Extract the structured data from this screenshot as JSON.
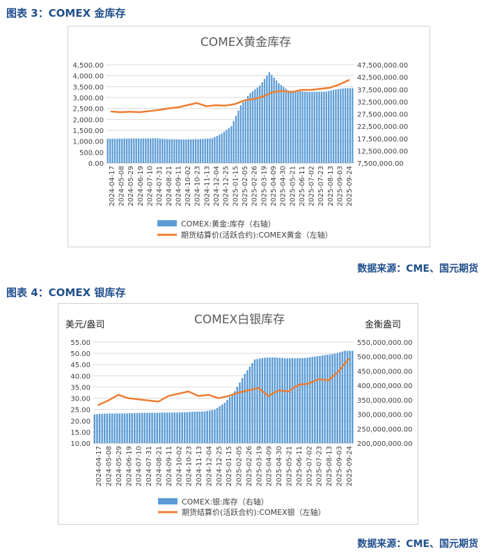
{
  "figure1": {
    "heading": "图表 3：COMEX 金库存",
    "source": "数据来源：CME、国元期货"
  },
  "figure2": {
    "heading": "图表 4：COMEX 银库存",
    "source": "数据来源：CME、国元期货"
  },
  "chart_data": [
    {
      "type": "bar",
      "title": "COMEX黄金库存",
      "left_axis_title": "",
      "right_axis_title": "",
      "x": [
        "2024-04-17",
        "2024-05-08",
        "2024-05-29",
        "2024-06-19",
        "2024-07-10",
        "2024-07-31",
        "2024-08-21",
        "2024-09-11",
        "2024-10-02",
        "2024-10-23",
        "2024-11-13",
        "2024-12-04",
        "2024-12-25",
        "2025-01-15",
        "2025-02-05",
        "2025-02-26",
        "2025-03-19",
        "2025-04-09",
        "2025-04-30",
        "2025-05-21",
        "2025-06-11",
        "2025-07-02",
        "2025-07-23",
        "2025-08-13",
        "2025-09-03",
        "2025-09-24"
      ],
      "x_ticks": [
        "2024-04-17",
        "2024-05-08",
        "2024-05-29",
        "2024-06-19",
        "2024-07-10",
        "2024-07-31",
        "2024-08-21",
        "2024-09-11",
        "2024-10-02",
        "2024-10-23",
        "2024-11-13",
        "2024-12-04",
        "2024-12-25",
        "2025-01-15",
        "2025-02-05",
        "2025-02-26",
        "2025-03-19",
        "2025-04-09",
        "2025-04-30",
        "2025-05-21",
        "2025-06-11",
        "2025-07-02",
        "2025-07-23",
        "2025-08-13",
        "2025-09-03",
        "2025-09-24"
      ],
      "left_ylim": [
        0,
        4500
      ],
      "left_ticks": [
        "4,500.00",
        "4,000.00",
        "3,500.00",
        "3,000.00",
        "2,500.00",
        "2,000.00",
        "1,500.00",
        "1,000.00",
        "500.00",
        "0.00"
      ],
      "right_ylim": [
        7500000,
        47500000
      ],
      "right_ticks": [
        "47,500,000.00",
        "42,500,000.00",
        "37,500,000.00",
        "32,500,000.00",
        "27,500,000.00",
        "22,500,000.00",
        "17,500,000.00",
        "12,500,000.00",
        "7,500,000.00"
      ],
      "series": [
        {
          "name": "COMEX:黄金:库存（右轴）",
          "kind": "bar",
          "axis": "right",
          "color": "#5b9bd5",
          "values": [
            17400000,
            17400000,
            17500000,
            17500000,
            17500000,
            17600000,
            17300000,
            17200000,
            17100000,
            17200000,
            17300000,
            17600000,
            19500000,
            22500000,
            31000000,
            36000000,
            39000000,
            44500000,
            40000000,
            37000000,
            36800000,
            36500000,
            36500000,
            36600000,
            37500000,
            38000000
          ]
        },
        {
          "name": "期货结算价(活跃合约):COMEX黄金（左轴）",
          "kind": "line",
          "axis": "left",
          "color": "#ed7d31",
          "values": [
            2360,
            2330,
            2350,
            2330,
            2380,
            2430,
            2500,
            2550,
            2650,
            2750,
            2600,
            2650,
            2630,
            2700,
            2870,
            2930,
            3050,
            3250,
            3300,
            3250,
            3350,
            3350,
            3400,
            3450,
            3600,
            3800
          ]
        }
      ]
    },
    {
      "type": "bar",
      "title": "COMEX白银库存",
      "left_axis_title": "美元/盎司",
      "right_axis_title": "金衡盎司",
      "x": [
        "2024-04-17",
        "2024-05-08",
        "2024-05-29",
        "2024-06-19",
        "2024-07-10",
        "2024-07-31",
        "2024-08-21",
        "2024-09-11",
        "2024-10-02",
        "2024-10-23",
        "2024-11-13",
        "2024-12-04",
        "2024-12-25",
        "2025-01-15",
        "2025-02-05",
        "2025-02-26",
        "2025-03-19",
        "2025-04-09",
        "2025-04-30",
        "2025-05-21",
        "2025-06-11",
        "2025-07-02",
        "2025-07-23",
        "2025-08-13",
        "2025-09-03",
        "2025-09-24"
      ],
      "x_ticks": [
        "2024-04-17",
        "2024-05-08",
        "2024-05-29",
        "2024-06-19",
        "2024-07-10",
        "2024-07-31",
        "2024-08-21",
        "2024-09-11",
        "2024-10-02",
        "2024-10-23",
        "2024-11-13",
        "2024-12-04",
        "2024-12-25",
        "2025-01-15",
        "2025-02-05",
        "2025-02-26",
        "2025-03-19",
        "2025-04-09",
        "2025-04-30",
        "2025-05-21",
        "2025-06-11",
        "2025-07-02",
        "2025-07-23",
        "2025-08-13",
        "2025-09-03",
        "2025-09-24"
      ],
      "left_ylim": [
        10,
        55
      ],
      "left_ticks": [
        "55.00",
        "50.00",
        "45.00",
        "40.00",
        "35.00",
        "30.00",
        "25.00",
        "20.00",
        "15.00",
        "10.00"
      ],
      "right_ylim": [
        200000000,
        550000000
      ],
      "right_ticks": [
        "550,000,000.00",
        "500,000,000.00",
        "450,000,000.00",
        "400,000,000.00",
        "350,000,000.00",
        "300,000,000.00",
        "250,000,000.00",
        "200,000,000.00"
      ],
      "series": [
        {
          "name": "COMEX:银:库存（右轴）",
          "kind": "bar",
          "axis": "right",
          "color": "#5b9bd5",
          "values": [
            300000000,
            302000000,
            303000000,
            303000000,
            304000000,
            305000000,
            305000000,
            306000000,
            306000000,
            307000000,
            309000000,
            310000000,
            316000000,
            340000000,
            380000000,
            440000000,
            490000000,
            496000000,
            497000000,
            494000000,
            494000000,
            495000000,
            500000000,
            505000000,
            510000000,
            520000000
          ]
        },
        {
          "name": "期货结算价(活跃合约):COMEX银（左轴）",
          "kind": "line",
          "axis": "left",
          "color": "#ed7d31",
          "values": [
            27,
            29,
            31.5,
            30,
            29.5,
            29,
            28.5,
            31,
            32,
            33,
            31,
            31.5,
            30,
            31,
            32.5,
            33.5,
            34.5,
            31,
            33.5,
            33,
            36,
            36.5,
            38.5,
            38,
            42,
            47.5
          ]
        }
      ]
    }
  ]
}
